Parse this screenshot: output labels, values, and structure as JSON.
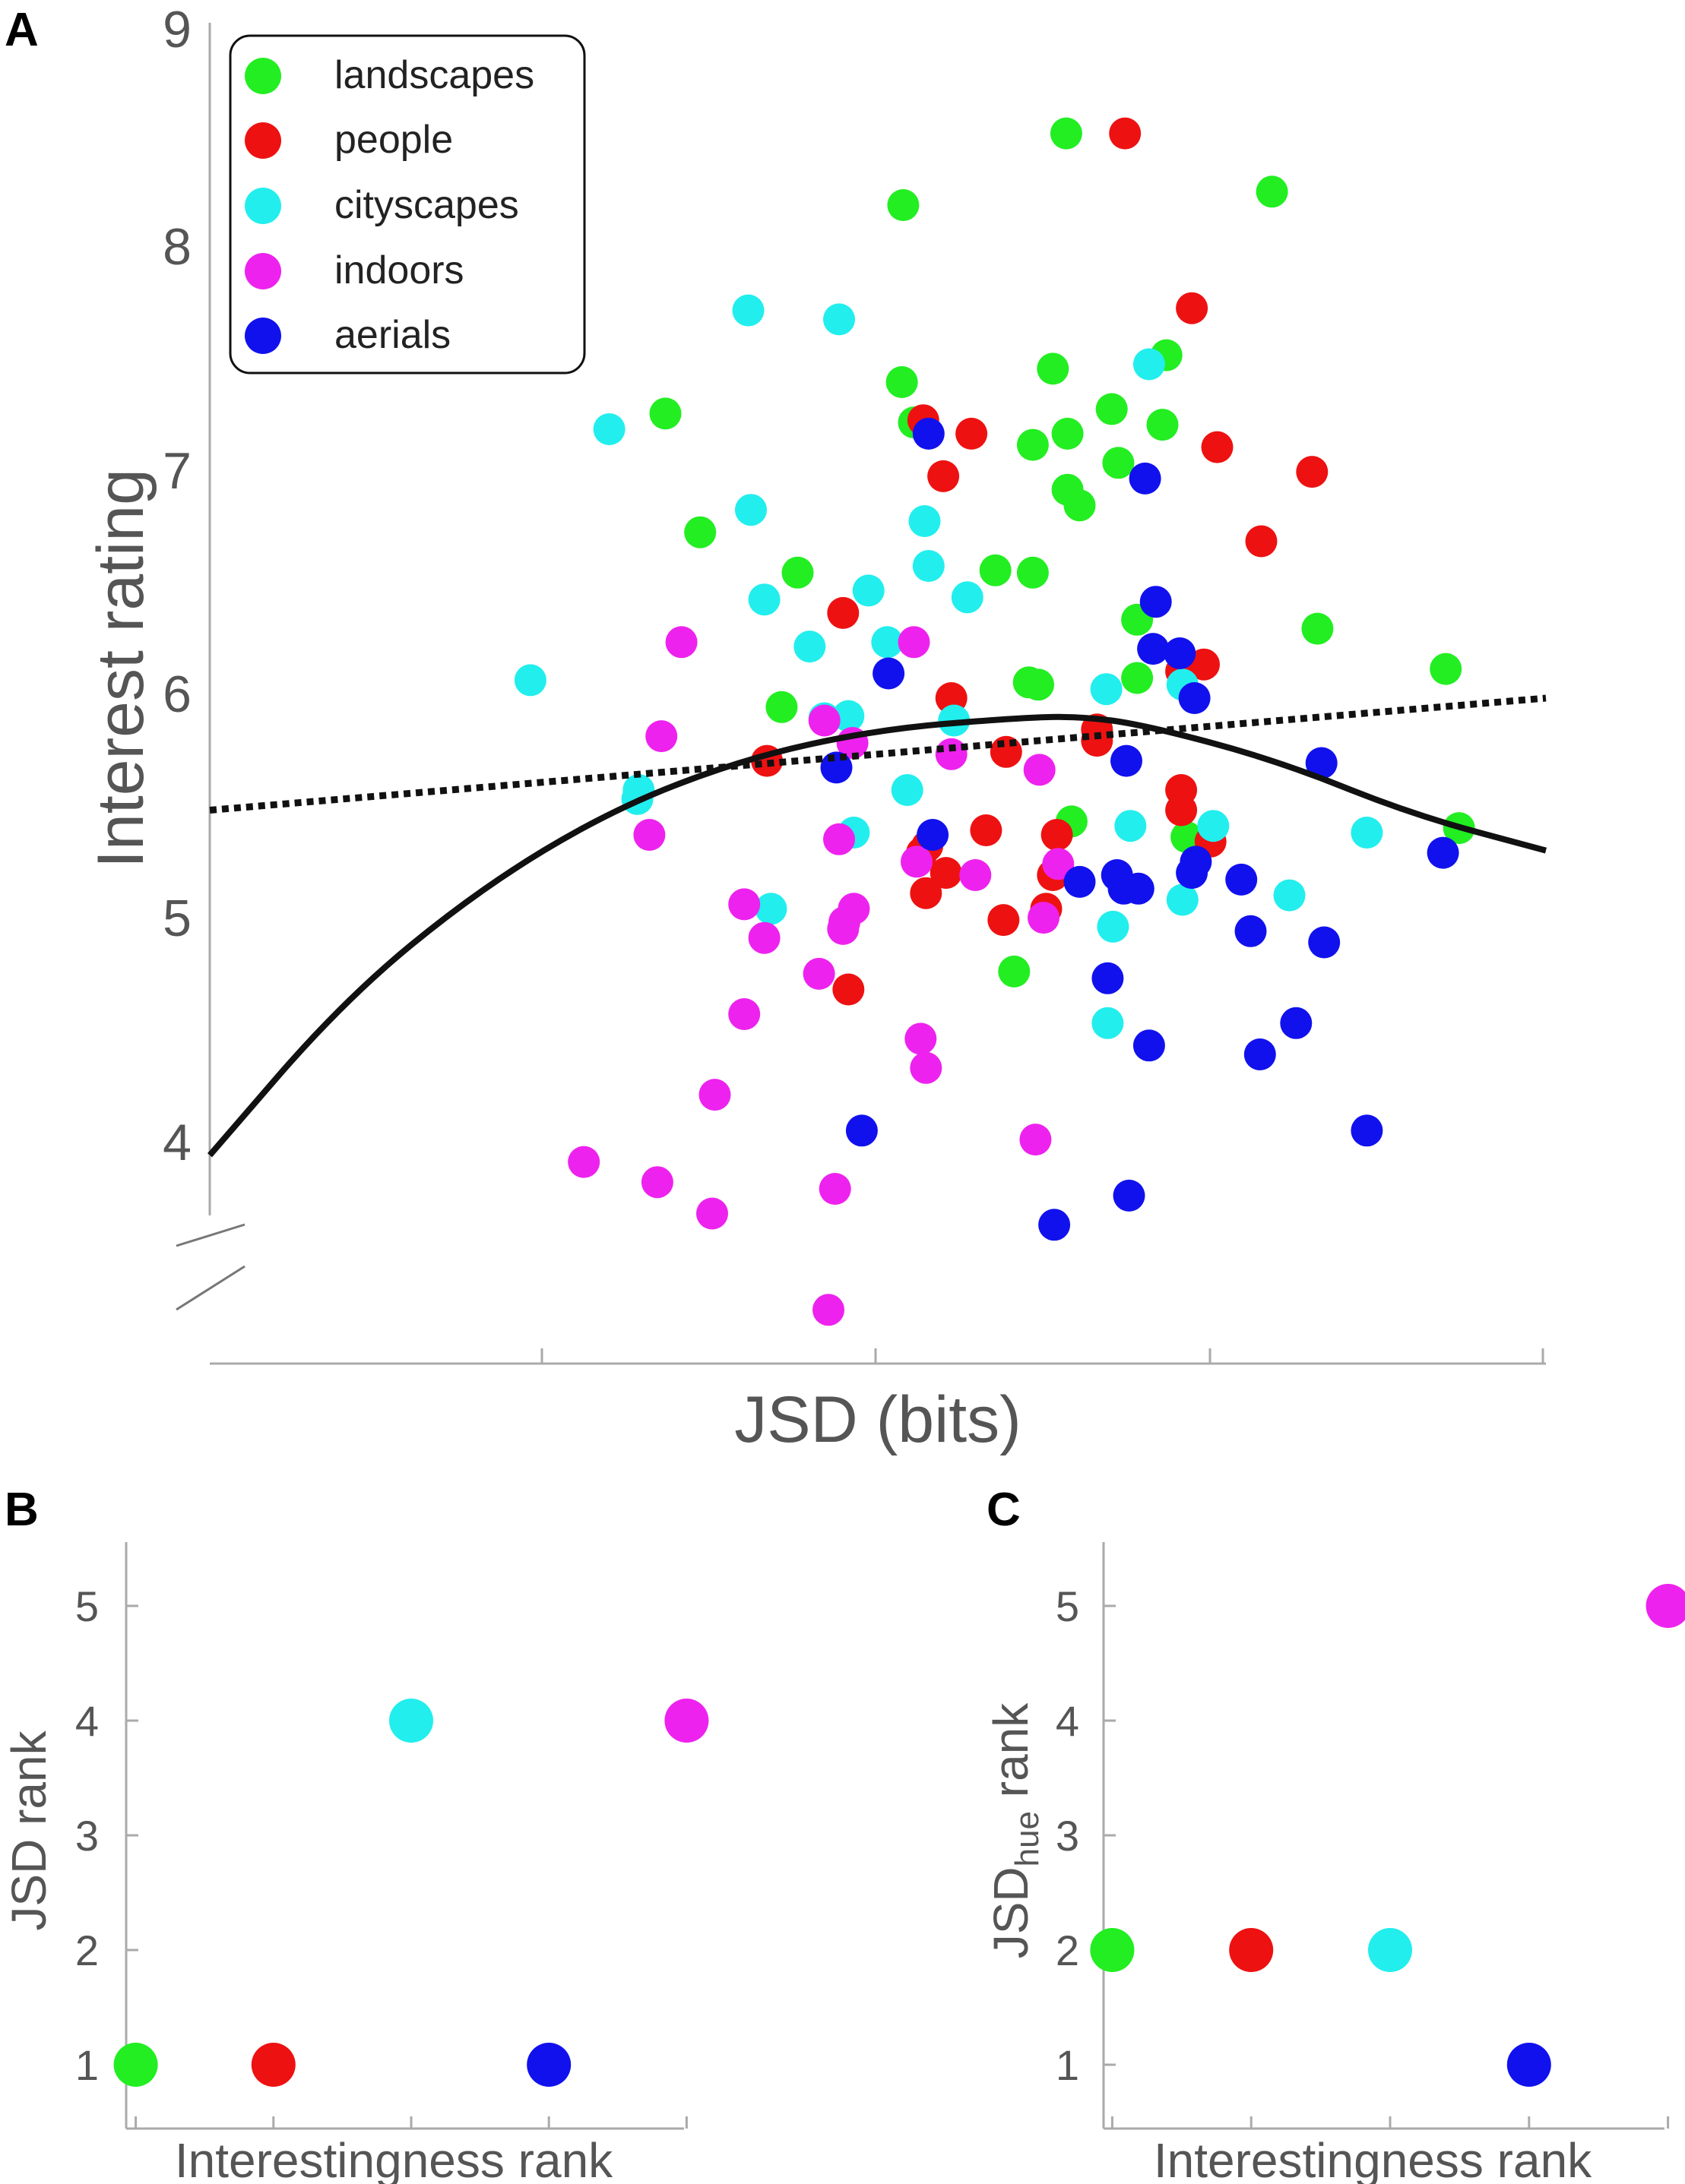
{
  "panels": {
    "a_label": "A",
    "b_label": "B",
    "c_label": "C"
  },
  "chart_data": [
    {
      "id": "A",
      "type": "scatter",
      "title": "",
      "xlabel": "JSD (bits)",
      "ylabel": "Interest rating",
      "ylim": [
        3.4,
        9.0
      ],
      "yticks": [
        "4",
        "5",
        "6",
        "7",
        "8",
        "9"
      ],
      "xlim": [
        0,
        1
      ],
      "legend": {
        "placement": "top-left",
        "entries": [
          {
            "name": "landscapes",
            "color": "#22ee22"
          },
          {
            "name": "people",
            "color": "#ee1111"
          },
          {
            "name": "cityscapes",
            "color": "#22eeee"
          },
          {
            "name": "indoors",
            "color": "#ee22ee"
          },
          {
            "name": "aerials",
            "color": "#1111ee"
          }
        ]
      },
      "series": [
        {
          "name": "landscapes",
          "color": "#22ee22",
          "points": [
            [
              0.341,
              7.27
            ],
            [
              0.367,
              6.74
            ],
            [
              0.44,
              6.56
            ],
            [
              0.428,
              5.96
            ],
            [
              0.519,
              8.2
            ],
            [
              0.518,
              7.41
            ],
            [
              0.527,
              7.23
            ],
            [
              0.588,
              6.57
            ],
            [
              0.616,
              6.56
            ],
            [
              0.616,
              7.13
            ],
            [
              0.631,
              7.47
            ],
            [
              0.642,
              7.18
            ],
            [
              0.675,
              7.29
            ],
            [
              0.642,
              6.93
            ],
            [
              0.651,
              6.86
            ],
            [
              0.68,
              7.05
            ],
            [
              0.716,
              7.53
            ],
            [
              0.713,
              7.22
            ],
            [
              0.694,
              6.35
            ],
            [
              0.694,
              6.09
            ],
            [
              0.613,
              6.07
            ],
            [
              0.62,
              6.06
            ],
            [
              0.645,
              5.45
            ],
            [
              0.602,
              4.78
            ],
            [
              0.641,
              8.52
            ],
            [
              0.795,
              8.26
            ],
            [
              0.829,
              6.31
            ],
            [
              0.925,
              6.13
            ],
            [
              0.935,
              5.42
            ],
            [
              0.731,
              5.38
            ]
          ]
        },
        {
          "name": "people",
          "color": "#ee1111",
          "points": [
            [
              0.685,
              8.52
            ],
            [
              0.735,
              7.74
            ],
            [
              0.534,
              7.24
            ],
            [
              0.57,
              7.18
            ],
            [
              0.549,
              6.99
            ],
            [
              0.754,
              7.12
            ],
            [
              0.787,
              6.7
            ],
            [
              0.825,
              7.01
            ],
            [
              0.474,
              6.38
            ],
            [
              0.555,
              6.0
            ],
            [
              0.417,
              5.72
            ],
            [
              0.596,
              5.76
            ],
            [
              0.664,
              5.86
            ],
            [
              0.664,
              5.81
            ],
            [
              0.727,
              5.59
            ],
            [
              0.727,
              5.5
            ],
            [
              0.727,
              6.12
            ],
            [
              0.744,
              6.15
            ],
            [
              0.749,
              5.36
            ],
            [
              0.581,
              5.41
            ],
            [
              0.634,
              5.39
            ],
            [
              0.631,
              5.21
            ],
            [
              0.626,
              5.06
            ],
            [
              0.594,
              5.01
            ],
            [
              0.537,
              5.34
            ],
            [
              0.533,
              5.31
            ],
            [
              0.551,
              5.22
            ],
            [
              0.536,
              5.13
            ],
            [
              0.478,
              4.7
            ]
          ]
        },
        {
          "name": "cityscapes",
          "color": "#22eeee",
          "points": [
            [
              0.24,
              6.08
            ],
            [
              0.299,
              7.2
            ],
            [
              0.403,
              7.73
            ],
            [
              0.471,
              7.69
            ],
            [
              0.405,
              6.84
            ],
            [
              0.415,
              6.44
            ],
            [
              0.449,
              6.23
            ],
            [
              0.493,
              6.48
            ],
            [
              0.535,
              6.79
            ],
            [
              0.538,
              6.59
            ],
            [
              0.567,
              6.45
            ],
            [
              0.507,
              6.25
            ],
            [
              0.46,
              5.91
            ],
            [
              0.478,
              5.92
            ],
            [
              0.522,
              5.59
            ],
            [
              0.482,
              5.4
            ],
            [
              0.42,
              5.06
            ],
            [
              0.32,
              5.55
            ],
            [
              0.321,
              5.59
            ],
            [
              0.557,
              5.9
            ],
            [
              0.671,
              6.04
            ],
            [
              0.703,
              7.49
            ],
            [
              0.728,
              6.06
            ],
            [
              0.728,
              5.1
            ],
            [
              0.689,
              5.43
            ],
            [
              0.676,
              4.98
            ],
            [
              0.672,
              4.55
            ],
            [
              0.751,
              5.43
            ],
            [
              0.808,
              5.12
            ],
            [
              0.866,
              5.4
            ]
          ]
        },
        {
          "name": "indoors",
          "color": "#ee22ee",
          "points": [
            [
              0.353,
              6.25
            ],
            [
              0.338,
              5.83
            ],
            [
              0.329,
              5.39
            ],
            [
              0.4,
              5.08
            ],
            [
              0.415,
              4.93
            ],
            [
              0.4,
              4.59
            ],
            [
              0.378,
              4.23
            ],
            [
              0.335,
              3.84
            ],
            [
              0.28,
              3.93
            ],
            [
              0.376,
              3.7
            ],
            [
              0.468,
              3.81
            ],
            [
              0.463,
              3.27
            ],
            [
              0.456,
              4.77
            ],
            [
              0.471,
              5.37
            ],
            [
              0.46,
              5.9
            ],
            [
              0.481,
              5.8
            ],
            [
              0.482,
              5.06
            ],
            [
              0.475,
              5.0
            ],
            [
              0.474,
              4.97
            ],
            [
              0.527,
              6.25
            ],
            [
              0.529,
              5.27
            ],
            [
              0.532,
              4.48
            ],
            [
              0.536,
              4.35
            ],
            [
              0.573,
              5.21
            ],
            [
              0.621,
              5.68
            ],
            [
              0.635,
              5.26
            ],
            [
              0.624,
              5.02
            ],
            [
              0.618,
              4.03
            ],
            [
              0.555,
              5.75
            ]
          ]
        },
        {
          "name": "aerials",
          "color": "#1111ee",
          "points": [
            [
              0.538,
              7.18
            ],
            [
              0.7,
              6.98
            ],
            [
              0.708,
              6.43
            ],
            [
              0.706,
              6.22
            ],
            [
              0.726,
              6.2
            ],
            [
              0.737,
              6.0
            ],
            [
              0.508,
              6.11
            ],
            [
              0.469,
              5.69
            ],
            [
              0.541,
              5.39
            ],
            [
              0.686,
              5.72
            ],
            [
              0.832,
              5.71
            ],
            [
              0.923,
              5.31
            ],
            [
              0.651,
              5.18
            ],
            [
              0.679,
              5.21
            ],
            [
              0.684,
              5.15
            ],
            [
              0.695,
              5.15
            ],
            [
              0.735,
              5.22
            ],
            [
              0.738,
              5.27
            ],
            [
              0.772,
              5.19
            ],
            [
              0.779,
              4.96
            ],
            [
              0.834,
              4.91
            ],
            [
              0.813,
              4.55
            ],
            [
              0.786,
              4.41
            ],
            [
              0.672,
              4.75
            ],
            [
              0.703,
              4.45
            ],
            [
              0.488,
              4.07
            ],
            [
              0.632,
              3.65
            ],
            [
              0.688,
              3.78
            ],
            [
              0.866,
              4.07
            ]
          ]
        }
      ],
      "fits": [
        {
          "name": "linear",
          "style": "dotted",
          "points": [
            [
              0.0,
              5.5
            ],
            [
              1.0,
              6.0
            ]
          ]
        },
        {
          "name": "quadratic",
          "style": "solid",
          "points": [
            [
              0.0,
              3.96
            ],
            [
              0.1,
              4.65
            ],
            [
              0.2,
              5.14
            ],
            [
              0.3,
              5.5
            ],
            [
              0.4,
              5.73
            ],
            [
              0.5,
              5.86
            ],
            [
              0.6,
              5.91
            ],
            [
              0.65,
              5.92
            ],
            [
              0.7,
              5.88
            ],
            [
              0.8,
              5.72
            ],
            [
              0.9,
              5.48
            ],
            [
              1.0,
              5.32
            ]
          ]
        }
      ]
    },
    {
      "id": "B",
      "type": "scatter",
      "title": "",
      "xlabel": "Interestingness rank",
      "ylabel": "JSD rank",
      "categories": [
        "landscapes",
        "people",
        "cityscapes",
        "aerials",
        "indoors"
      ],
      "x": [
        1,
        2,
        3,
        4,
        5
      ],
      "values": [
        1,
        1,
        4,
        1,
        4
      ],
      "colors": [
        "#22ee22",
        "#ee1111",
        "#22eeee",
        "#1111ee",
        "#ee22ee"
      ],
      "xlim": [
        0.5,
        5.5
      ],
      "ylim": [
        0.6,
        5.6
      ],
      "yticks": [
        "1",
        "2",
        "3",
        "4",
        "5"
      ]
    },
    {
      "id": "C",
      "type": "scatter",
      "title": "",
      "xlabel": "Interestingness rank",
      "ylabel_main": "JSD",
      "ylabel_sub": "hue",
      "ylabel_suffix": " rank",
      "categories": [
        "landscapes",
        "people",
        "cityscapes",
        "aerials",
        "indoors"
      ],
      "x": [
        1,
        2,
        3,
        4,
        5
      ],
      "values": [
        2,
        2,
        2,
        1,
        5
      ],
      "colors": [
        "#22ee22",
        "#ee1111",
        "#22eeee",
        "#1111ee",
        "#ee22ee"
      ],
      "xlim": [
        0.5,
        5.5
      ],
      "ylim": [
        0.6,
        5.6
      ],
      "yticks": [
        "1",
        "2",
        "3",
        "4",
        "5"
      ]
    }
  ]
}
